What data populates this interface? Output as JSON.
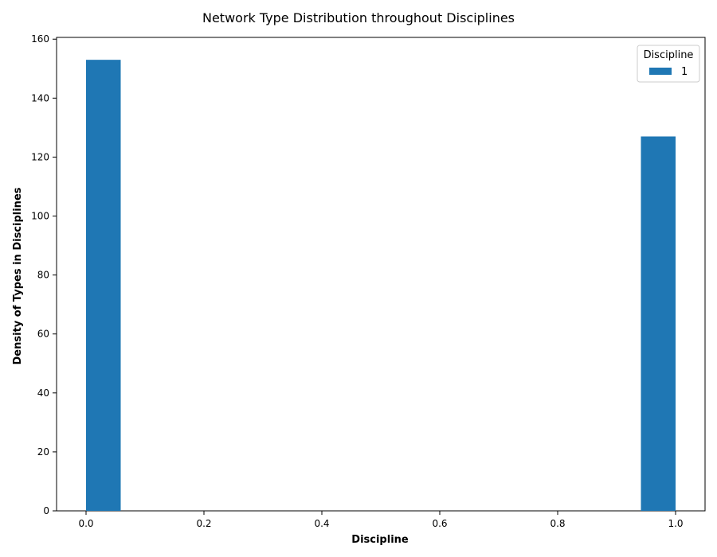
{
  "chart_data": {
    "type": "bar",
    "title": "Network Type Distribution throughout Disciplines",
    "xlabel": "Discipline",
    "ylabel": "Density of Types in Disciplines",
    "xlim": [
      -0.05,
      1.05
    ],
    "ylim": [
      0,
      160.6
    ],
    "xticks": [
      0.0,
      0.2,
      0.4,
      0.6,
      0.8,
      1.0
    ],
    "xtick_labels": [
      "0.0",
      "0.2",
      "0.4",
      "0.6",
      "0.8",
      "1.0"
    ],
    "yticks": [
      0,
      20,
      40,
      60,
      80,
      100,
      120,
      140,
      160
    ],
    "ytick_labels": [
      "0",
      "20",
      "40",
      "60",
      "80",
      "100",
      "120",
      "140",
      "160"
    ],
    "grid": false,
    "bins": [
      {
        "x_start": 0.0,
        "x_end": 0.0588,
        "value": 153
      },
      {
        "x_start": 0.9412,
        "x_end": 1.0,
        "value": 127
      }
    ],
    "series": [
      {
        "name": "1",
        "color": "#1f77b4"
      }
    ],
    "legend": {
      "title": "Discipline",
      "placement": "top-right",
      "entries": [
        "1"
      ]
    }
  }
}
